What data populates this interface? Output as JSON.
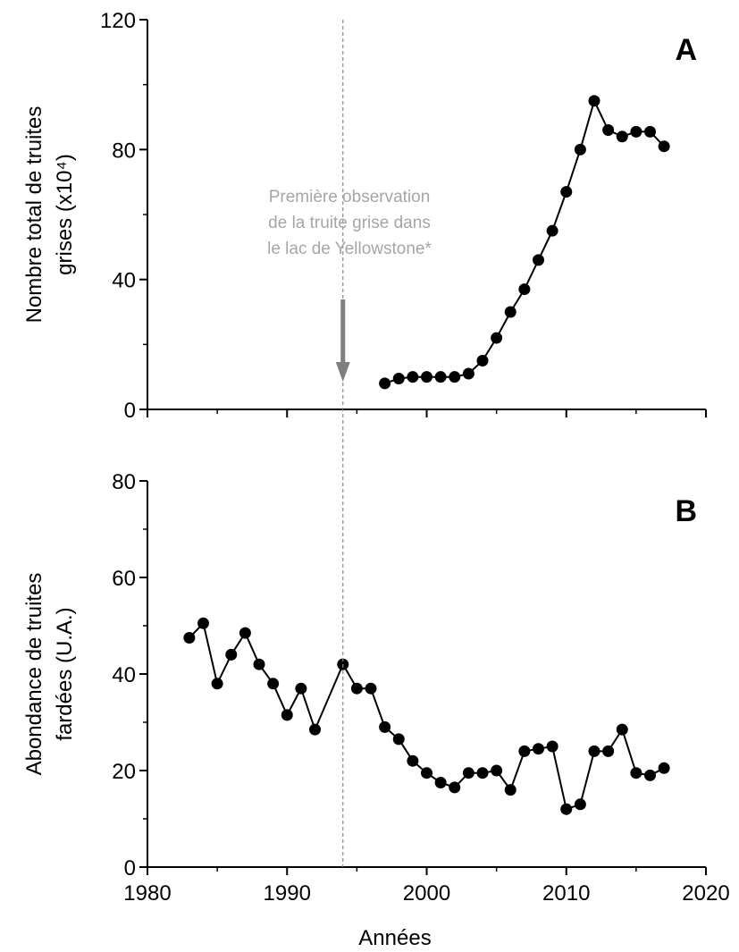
{
  "chart_data": [
    {
      "panel": "A",
      "type": "line",
      "ylabel": "Nombre total de truites grises (x10⁴)",
      "ylabel_lines": [
        "Nombre total de truites",
        "grises (x10⁴)"
      ],
      "ylim": [
        0,
        120
      ],
      "yticks": [
        0,
        40,
        80,
        120
      ],
      "xlim": [
        1980,
        2020
      ],
      "x": [
        1997,
        1998,
        1999,
        2000,
        2001,
        2002,
        2003,
        2004,
        2005,
        2006,
        2007,
        2008,
        2009,
        2010,
        2011,
        2012,
        2013,
        2014,
        2015,
        2016,
        2017
      ],
      "values": [
        8,
        9.5,
        10,
        10,
        10,
        10,
        11,
        15,
        22,
        30,
        37,
        46,
        55,
        67,
        80,
        95,
        86,
        84,
        85.5,
        85.5,
        81
      ],
      "series": [
        {
          "marker": "filled-circle",
          "color": "#000000"
        }
      ]
    },
    {
      "panel": "B",
      "type": "line",
      "ylabel": "Abondance de truites fardées (U.A.)",
      "ylabel_lines": [
        "Abondance de truites",
        "fardées (U.A.)"
      ],
      "xlabel": "Années",
      "ylim": [
        0,
        80
      ],
      "yticks": [
        0,
        20,
        40,
        60,
        80
      ],
      "xlim": [
        1980,
        2020
      ],
      "xticks": [
        1980,
        1990,
        2000,
        2010,
        2020
      ],
      "x": [
        1983,
        1984,
        1985,
        1986,
        1987,
        1988,
        1989,
        1990,
        1991,
        1992,
        1994,
        1995,
        1996,
        1997,
        1998,
        1999,
        2000,
        2001,
        2002,
        2003,
        2004,
        2005,
        2006,
        2007,
        2008,
        2009,
        2010,
        2011,
        2012,
        2013,
        2014,
        2015,
        2016,
        2017
      ],
      "values": [
        47.5,
        50.5,
        38,
        44,
        48.5,
        42,
        38,
        31.5,
        37,
        28.5,
        42,
        37,
        37,
        29,
        26.5,
        22,
        19.5,
        17.5,
        16.5,
        19.5,
        19.5,
        20,
        16,
        24,
        24.5,
        25,
        12,
        13,
        24,
        24,
        28.5,
        19.5,
        19,
        20.5
      ],
      "series": [
        {
          "marker": "filled-circle",
          "color": "#000000"
        }
      ]
    }
  ],
  "panels": {
    "a": {
      "letter": "A"
    },
    "b": {
      "letter": "B"
    }
  },
  "annotation": {
    "event_year": 1994,
    "lines": [
      "Première observation",
      "de la truite grise dans",
      "le lac de Yellowstone*"
    ],
    "text_color": "#a6a6a6",
    "arrow_color": "#7f7f7f",
    "guide_color": "#888888"
  },
  "style": {
    "line_color": "#000000",
    "marker_color": "#000000"
  }
}
